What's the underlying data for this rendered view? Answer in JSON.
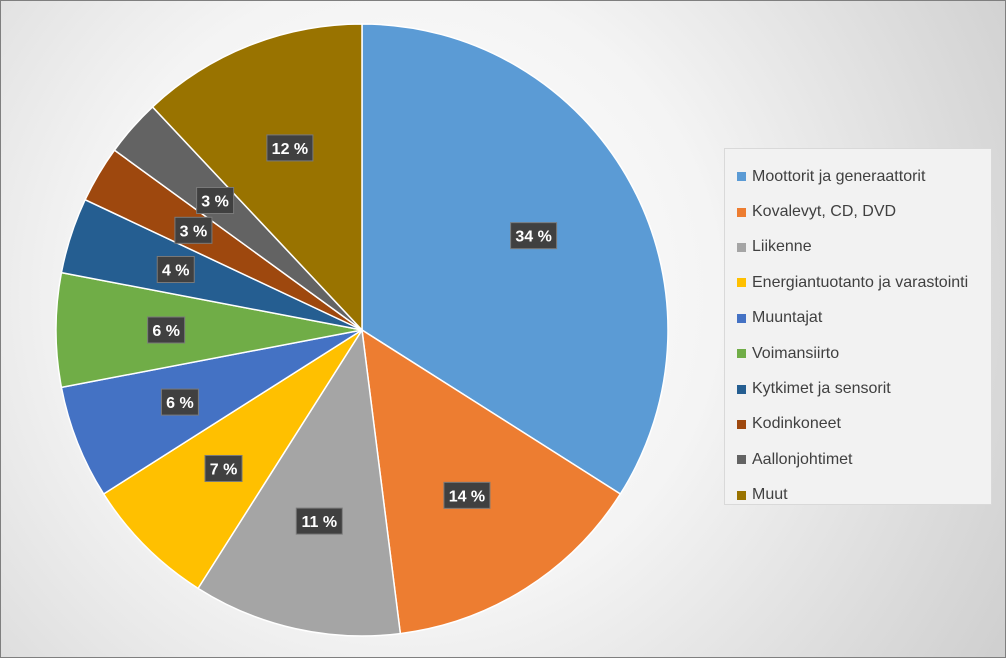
{
  "chart_data": {
    "type": "pie",
    "title": "",
    "legend_position": "right",
    "categories": [
      "Moottorit ja generaattorit",
      "Kovalevyt, CD, DVD",
      "Liikenne",
      "Energiantuotanto ja varastointi",
      "Muuntajat",
      "Voimansiirto",
      "Kytkimet ja sensorit",
      "Kodinkoneet",
      "Aallonjohtimet",
      "Muut"
    ],
    "values": [
      34,
      14,
      11,
      7,
      6,
      6,
      4,
      3,
      3,
      12
    ],
    "data_labels": [
      "34 %",
      "14 %",
      "11 %",
      "7 %",
      "6 %",
      "6 %",
      "4 %",
      "3 %",
      "3 %",
      "12 %"
    ],
    "colors": [
      "#5b9bd5",
      "#ed7d31",
      "#a5a5a5",
      "#ffc000",
      "#4472c4",
      "#70ad47",
      "#255e91",
      "#9e480e",
      "#636363",
      "#997300"
    ]
  }
}
